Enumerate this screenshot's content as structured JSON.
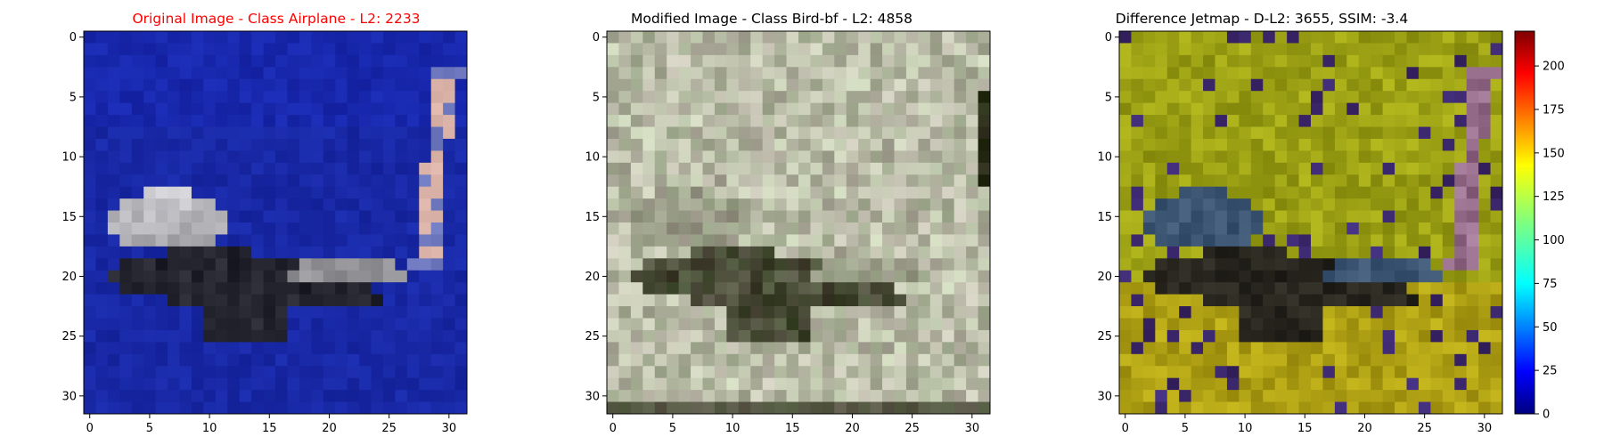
{
  "figure": {
    "colors": {
      "title_highlight": "#ff0000",
      "title_default": "#000000",
      "airplane_background": "#1a2fa6"
    }
  },
  "chart_data": [
    {
      "type": "heatmap",
      "title": "Original Image - Class Airplane - L2: 2233",
      "title_color": "#ff0000",
      "x_ticks": [
        "0",
        "5",
        "10",
        "15",
        "20",
        "25",
        "30"
      ],
      "y_ticks": [
        "0",
        "5",
        "10",
        "15",
        "20",
        "25",
        "30"
      ],
      "xlim": [
        -0.5,
        31.5
      ],
      "ylim": [
        31.5,
        -0.5
      ],
      "grid": false,
      "image": "32x32 RGB image: airplane (white and dark fuselage) on a blue background"
    },
    {
      "type": "heatmap",
      "title": "Modified Image - Class Bird-bf - L2: 4858",
      "title_color": "#000000",
      "x_ticks": [
        "0",
        "5",
        "10",
        "15",
        "20",
        "25",
        "30"
      ],
      "y_ticks": [
        "0",
        "5",
        "10",
        "15",
        "20",
        "25",
        "30"
      ],
      "xlim": [
        -0.5,
        31.5
      ],
      "ylim": [
        31.5,
        -0.5
      ],
      "grid": false,
      "image": "32x32 RGB image: grey/beige textured noise with dark blob in lower center"
    },
    {
      "type": "heatmap",
      "title": "Difference Jetmap - D-L2: 3655, SSIM: -3.4",
      "title_color": "#000000",
      "x_ticks": [
        "0",
        "5",
        "10",
        "15",
        "20",
        "25",
        "30"
      ],
      "y_ticks": [
        "0",
        "5",
        "10",
        "15",
        "20",
        "25",
        "30"
      ],
      "xlim": [
        -0.5,
        31.5
      ],
      "ylim": [
        31.5,
        -0.5
      ],
      "grid": false,
      "colorbar": {
        "colormap": "jet",
        "range": [
          0,
          220
        ],
        "ticks": [
          "0",
          "25",
          "50",
          "75",
          "100",
          "125",
          "150",
          "175",
          "200"
        ]
      },
      "image": "32x32 difference image: yellow-olive field with dark blue/grey airplane silhouette"
    }
  ]
}
